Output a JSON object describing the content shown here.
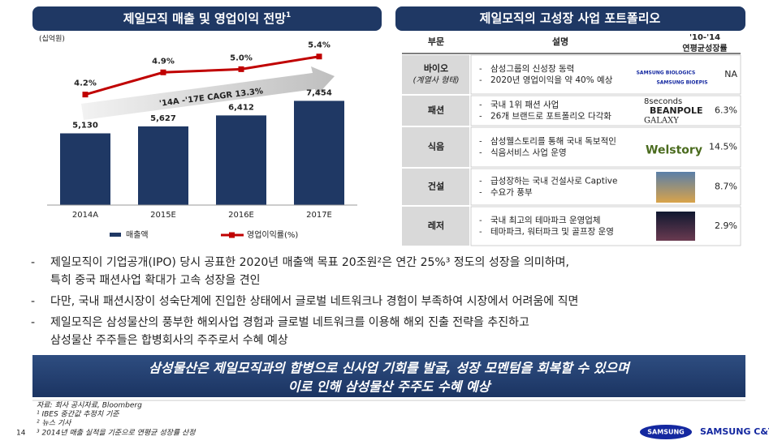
{
  "left_panel": {
    "title": "제일모직 매출 및 영업이익 전망",
    "title_sup": "1",
    "unit": "(십억원)",
    "chart": {
      "type": "bar_line",
      "categories": [
        "2014A",
        "2015E",
        "2016E",
        "2017E"
      ],
      "series": [
        {
          "name": "매출액",
          "color": "#1f3864",
          "values": [
            5130,
            5627,
            6412,
            7454
          ],
          "value_labels": [
            "5,130",
            "5,627",
            "6,412",
            "7,454"
          ]
        },
        {
          "name": "영업이익률(%)",
          "color": "#c00000",
          "axis": "y2",
          "values": [
            4.2,
            4.9,
            5.0,
            5.4
          ],
          "value_labels": [
            "4.2%",
            "4.9%",
            "5.0%",
            "5.4%"
          ]
        }
      ],
      "ylim": [
        0,
        8000
      ],
      "y2lim": [
        3.5,
        5.7
      ],
      "annotation": "'14A -'17E CAGR 13.3%"
    }
  },
  "right_panel": {
    "title": "제일모직의 고성장 사업 포트폴리오",
    "header": [
      "부문",
      "설명",
      "'10-'14",
      "연평균성장률"
    ],
    "rows": [
      {
        "section": [
          "바이오",
          "(계열사 형태)"
        ],
        "bullets": [
          "삼성그룹의 신성장 동력",
          "2020년 영업이익을 약 40% 예상"
        ],
        "logo": [
          "SAMSUNG BIOLOGICS",
          "SAMSUNG BIOEPIS"
        ],
        "growth": "NA"
      },
      {
        "section": [
          "패션"
        ],
        "bullets": [
          "국내 1위 패션 사업",
          "26개 브랜드로 포트폴리오 다각화"
        ],
        "logo": [
          "8seconds",
          "BEANPOLE",
          "GALAXY"
        ],
        "growth": "6.3%"
      },
      {
        "section": [
          "식음"
        ],
        "bullets": [
          "삼성웰스토리를 통해 국내 독보적인",
          "식음서비스 사업 운영"
        ],
        "logo": [
          "Welstory"
        ],
        "growth": "14.5%"
      },
      {
        "section": [
          "건설"
        ],
        "bullets": [
          "급성장하는 국내 건설사로  Captive",
          "수요가  풍부"
        ],
        "logo": [],
        "growth": "8.7%"
      },
      {
        "section": [
          "레저"
        ],
        "bullets": [
          "국내 최고의 테마파크 운영업체",
          "테마파크, 워터파크 및 골프장 운영"
        ],
        "logo": [],
        "growth": "2.9%"
      }
    ]
  },
  "bullets": [
    [
      "제일모직이 기업공개(IPO) 당시 공표한 2020년 매출액 목표 20조원²은 연간 25%³ 정도의 성장을 의미하며,",
      "특히 중국 패션사업 확대가 고속 성장을 견인"
    ],
    [
      "다만, 국내 패션시장이 성숙단계에 진입한 상태에서 글로벌 네트워크나 경험이 부족하여 시장에서 어려움에 직면"
    ],
    [
      "제일모직은 삼성물산의 풍부한 해외사업 경험과 글로벌 네트워크를 이용해 해외 진출 전략을 추진하고",
      "삼성물산 주주들은 합병회사의 주주로서 수혜 예상"
    ]
  ],
  "banner": [
    "삼성물산은 제일모직과의 합병으로 신사업 기회를  발굴, 성장 모멘텀을 회복할 수 있으며",
    "이로 인해 삼성물산 주주도 수혜 예상"
  ],
  "footnotes": [
    "자료: 회사 공시자료, Bloomberg",
    "¹ IBES 중간값 추정치 기준",
    "² 뉴스 기사",
    "³ 2014년 매출 실적을 기준으로 연평균 성장률 산정"
  ],
  "page_number": "14",
  "footer": {
    "logo": "SAMSUNG",
    "company": "SAMSUNG C&T"
  }
}
